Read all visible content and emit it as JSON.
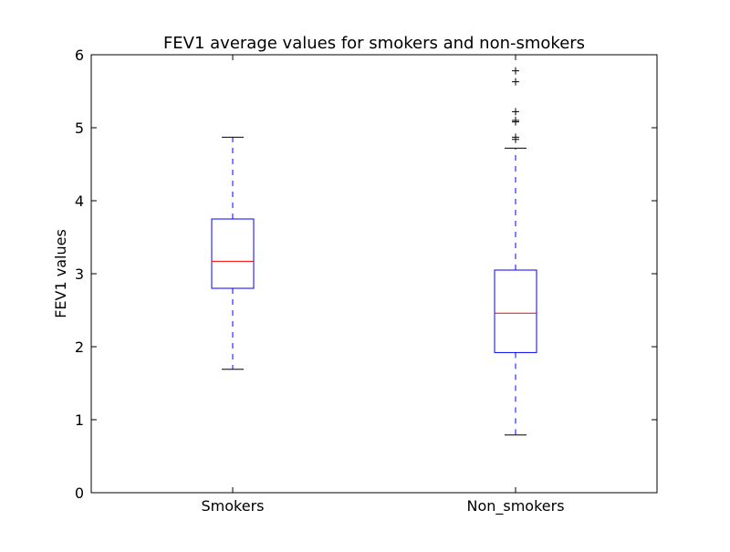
{
  "chart_data": {
    "type": "boxplot",
    "title": "FEV1 average values for smokers and non-smokers",
    "xlabel": "",
    "ylabel": "FEV1 values",
    "ylim": [
      0,
      6
    ],
    "yticks": [
      "0",
      "1",
      "2",
      "3",
      "4",
      "5",
      "6"
    ],
    "grid": false,
    "categories": [
      "Smokers",
      "Non_smokers"
    ],
    "boxes": [
      {
        "category": "Smokers",
        "whisker_low": 1.69,
        "q1": 2.8,
        "median": 3.17,
        "q3": 3.75,
        "whisker_high": 4.87,
        "outliers": []
      },
      {
        "category": "Non_smokers",
        "whisker_low": 0.79,
        "q1": 1.92,
        "median": 2.46,
        "q3": 3.05,
        "whisker_high": 4.72,
        "outliers": [
          4.84,
          4.87,
          5.08,
          5.1,
          5.22,
          5.63,
          5.78
        ]
      }
    ],
    "colors": {
      "box": "#0000ff",
      "median": "#ff0000",
      "whisker": "#0000ff",
      "cap": "#000000",
      "outlier": "#000000",
      "axes": "#000000"
    }
  }
}
